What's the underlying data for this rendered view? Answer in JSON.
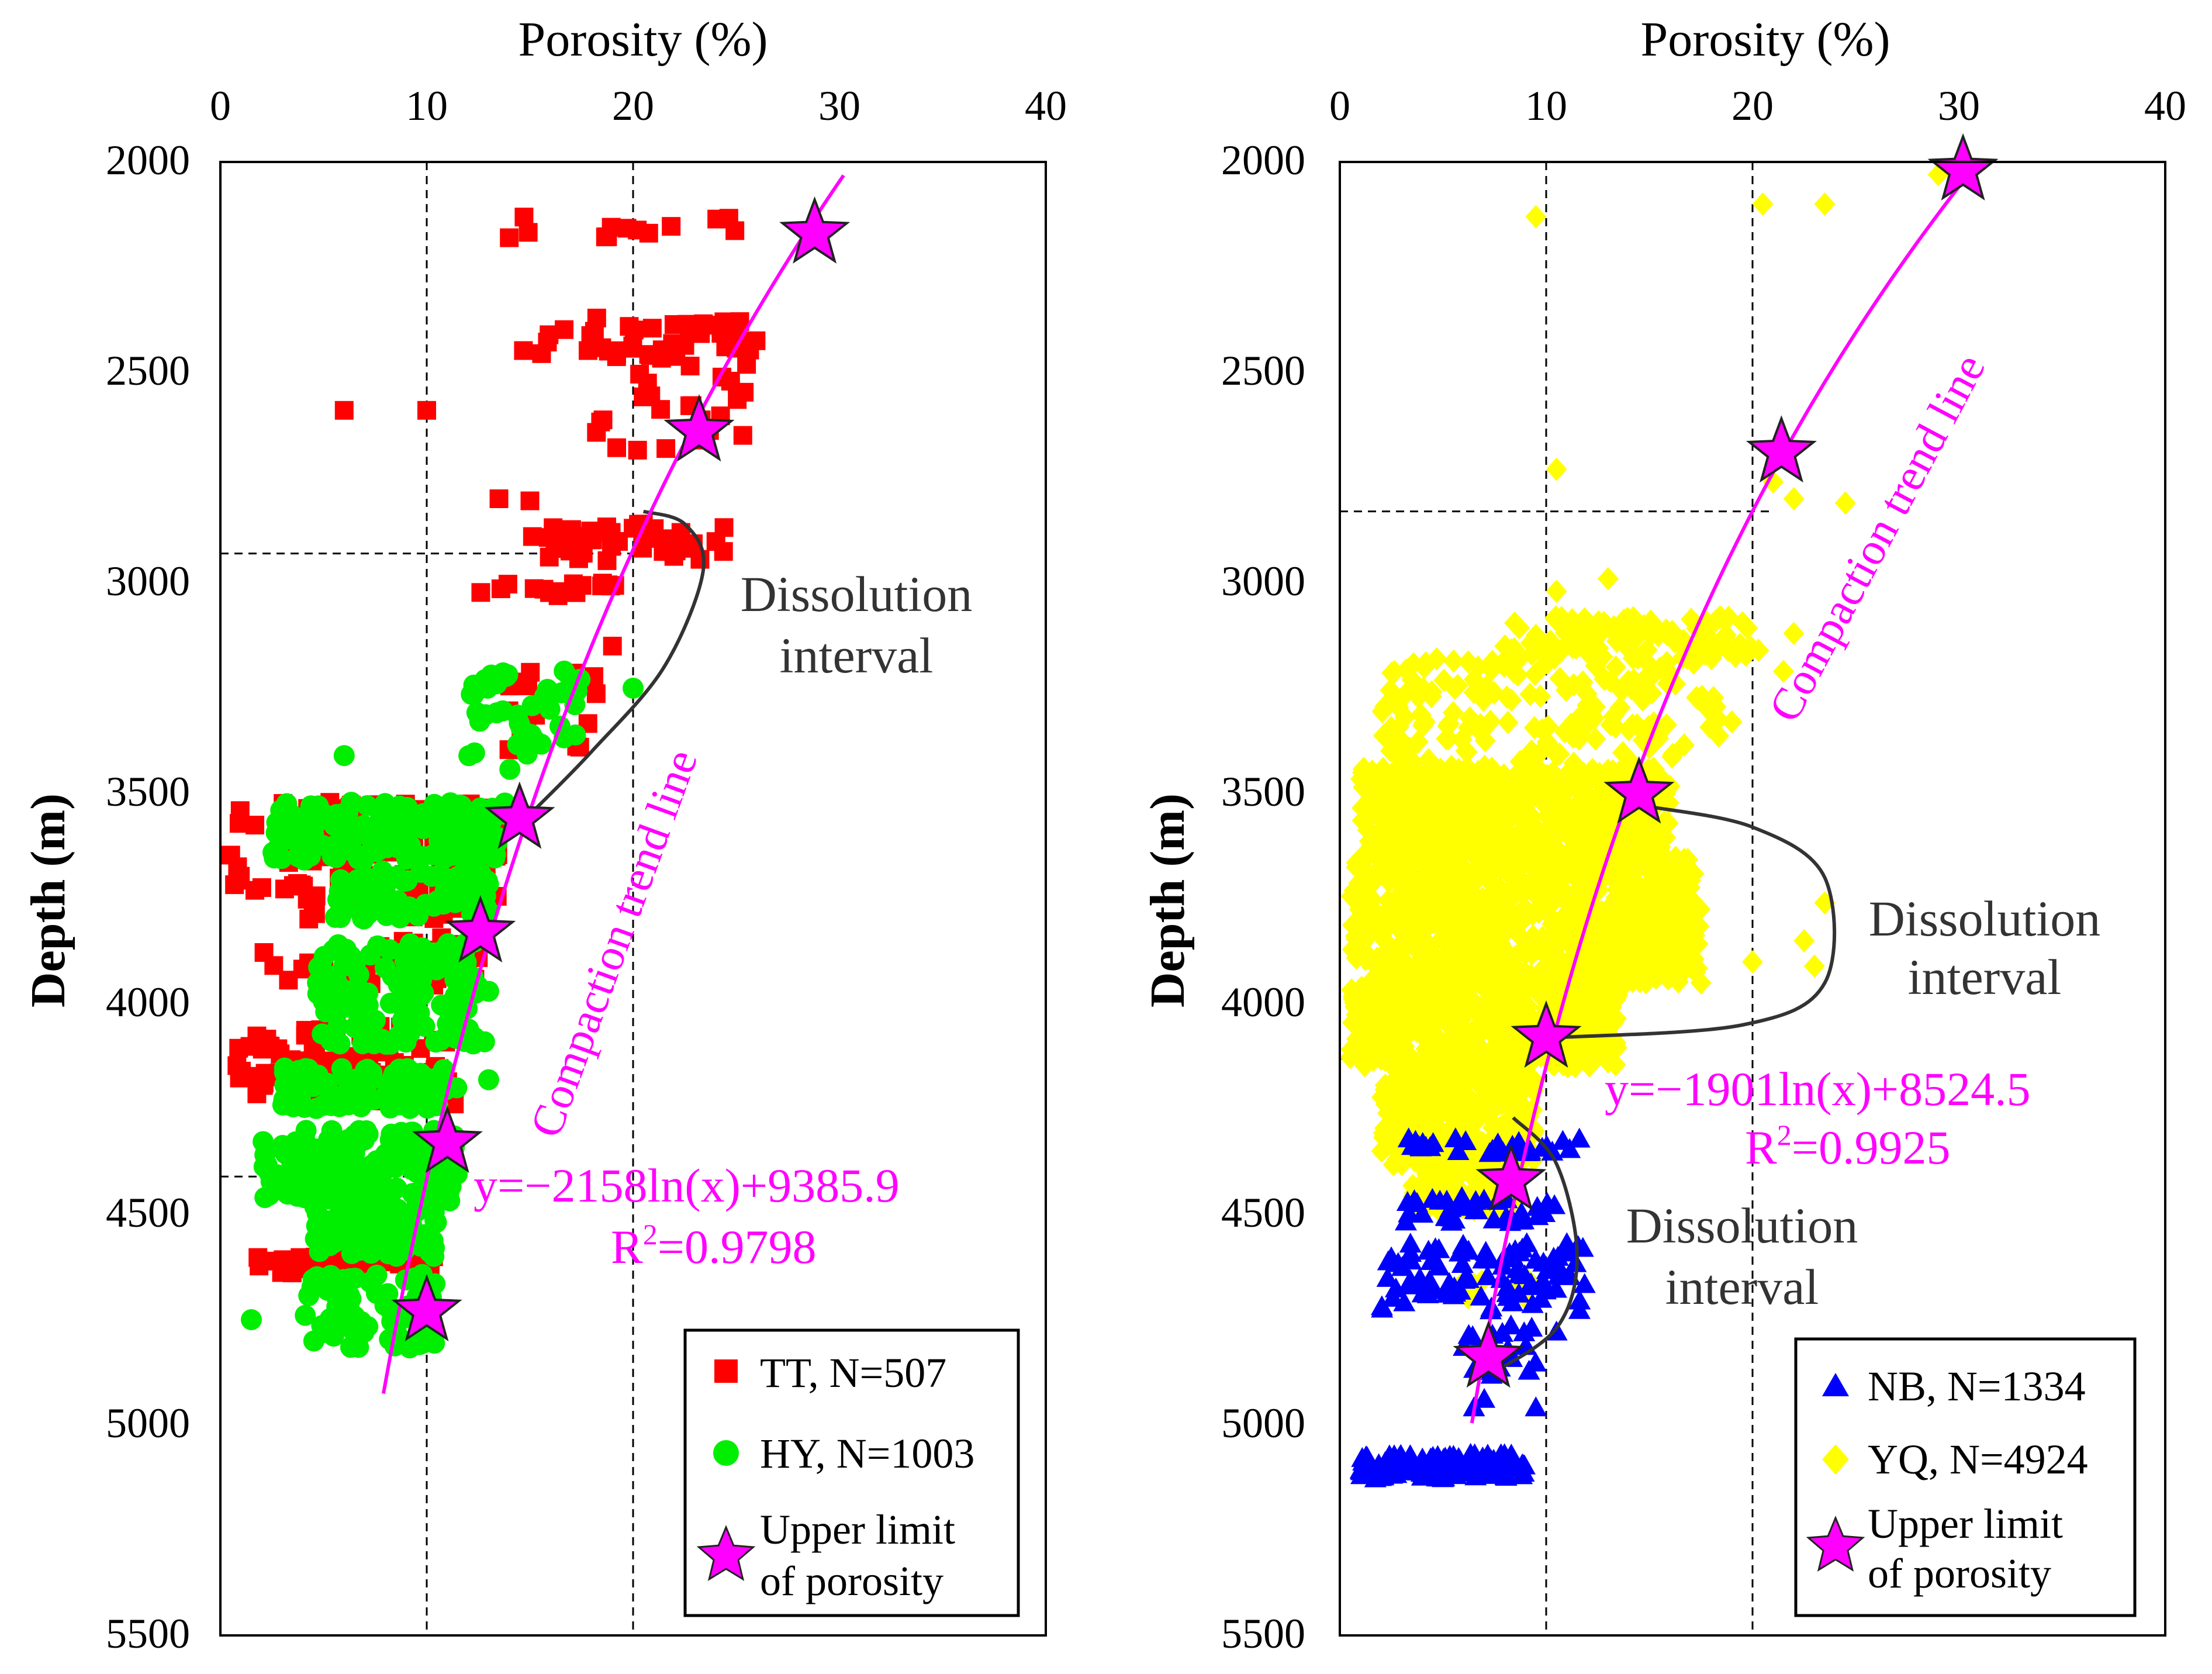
{
  "chart_data": [
    {
      "type": "scatter",
      "id": "left",
      "xlabel": "Porosity (%)",
      "ylabel": "Depth (m)",
      "xlim": [
        0,
        40
      ],
      "ylim": [
        2000,
        5500
      ],
      "xticks": [
        "0",
        "10",
        "20",
        "30",
        "40"
      ],
      "yticks": [
        "2000",
        "2500",
        "3000",
        "3500",
        "4000",
        "4500",
        "5000",
        "5500"
      ],
      "gridlines_x": [
        10,
        20
      ],
      "hlines": [
        {
          "depth": 2930,
          "x_to": 20
        },
        {
          "depth": 4410,
          "x_to": 12
        }
      ],
      "series": [
        {
          "name": "TT, N=507",
          "marker": "square",
          "color": "#ff0000",
          "clusters": [
            {
              "x": [
                14.5,
                25.0
              ],
              "y": [
                2130,
                2180
              ],
              "n": 12
            },
            {
              "x": [
                14.5,
                26.5
              ],
              "y": [
                2370,
                2470
              ],
              "n": 40
            },
            {
              "x": [
                17.5,
                25.5
              ],
              "y": [
                2480,
                2700
              ],
              "n": 24
            },
            {
              "x": [
                15.0,
                24.5
              ],
              "y": [
                2860,
                2950
              ],
              "n": 40
            },
            {
              "x": [
                11.0,
                20.0
              ],
              "y": [
                3000,
                3040
              ],
              "n": 16
            },
            {
              "x": [
                13.0,
                18.5
              ],
              "y": [
                3200,
                3420
              ],
              "n": 20
            },
            {
              "x": [
                0.5,
                13.5
              ],
              "y": [
                3520,
                3800
              ],
              "n": 120
            },
            {
              "x": [
                2.0,
                12.5
              ],
              "y": [
                3840,
                3960
              ],
              "n": 30
            },
            {
              "x": [
                0.8,
                11.5
              ],
              "y": [
                4050,
                4240
              ],
              "n": 110
            },
            {
              "x": [
                1.5,
                10.5
              ],
              "y": [
                4600,
                4640
              ],
              "n": 40
            }
          ],
          "points": [
            [
              14,
              2180
            ],
            [
              6,
              2590
            ],
            [
              10,
              2590
            ],
            [
              13.5,
              2800
            ],
            [
              15,
              2805
            ],
            [
              20,
              2870
            ],
            [
              19,
              3150
            ],
            [
              10.5,
              3940
            ],
            [
              12.5,
              3890
            ]
          ]
        },
        {
          "name": "HY, N=1003",
          "marker": "circle",
          "color": "#00ee00",
          "clusters": [
            {
              "x": [
                12.0,
                17.5
              ],
              "y": [
                3200,
                3450
              ],
              "n": 40
            },
            {
              "x": [
                2.5,
                14.5
              ],
              "y": [
                3520,
                3660
              ],
              "n": 160
            },
            {
              "x": [
                5.5,
                13.0
              ],
              "y": [
                3680,
                3800
              ],
              "n": 80
            },
            {
              "x": [
                4.5,
                12.5
              ],
              "y": [
                3850,
                4100
              ],
              "n": 140
            },
            {
              "x": [
                3.0,
                11.5
              ],
              "y": [
                4150,
                4250
              ],
              "n": 100
            },
            {
              "x": [
                2.0,
                11.5
              ],
              "y": [
                4300,
                4470
              ],
              "n": 160
            },
            {
              "x": [
                4.5,
                10.5
              ],
              "y": [
                4480,
                4600
              ],
              "n": 80
            },
            {
              "x": [
                4.0,
                10.5
              ],
              "y": [
                4640,
                4820
              ],
              "n": 70
            }
          ],
          "points": [
            [
              6,
              3410
            ],
            [
              1.5,
              4750
            ],
            [
              13,
              4180
            ],
            [
              12.8,
              4090
            ],
            [
              13,
              3970
            ],
            [
              20,
              3250
            ]
          ]
        }
      ],
      "stars": [
        {
          "x": 28.8,
          "y": 2170
        },
        {
          "x": 23.2,
          "y": 2640
        },
        {
          "x": 14.5,
          "y": 3560
        },
        {
          "x": 12.6,
          "y": 3830
        },
        {
          "x": 11.0,
          "y": 4330
        },
        {
          "x": 10.0,
          "y": 4730
        }
      ],
      "trend": {
        "a": 2158,
        "b": 9385.9,
        "x_range": [
          7.9,
          30.2
        ]
      },
      "dissolution_curve": [
        [
          20.5,
          2830
        ],
        [
          22.5,
          2860
        ],
        [
          23.4,
          2970
        ],
        [
          21.5,
          3200
        ],
        [
          18.0,
          3400
        ],
        [
          15.2,
          3540
        ]
      ],
      "annotations": {
        "trend_label": "Compaction trend line",
        "equation": "y=−2158ln(x)+9385.9",
        "r2_prefix": "R",
        "r2_sup": "2",
        "r2_value": "=0.9798",
        "dissolution": [
          "Dissolution",
          "interval"
        ]
      },
      "legend": {
        "position": "bottom-right",
        "entries": [
          "TT, N=507",
          "HY, N=1003"
        ],
        "star_label": [
          "Upper limit",
          "of porosity"
        ]
      }
    },
    {
      "type": "scatter",
      "id": "right",
      "xlabel": "Porosity (%)",
      "ylabel": "Depth (m)",
      "xlim": [
        0,
        40
      ],
      "ylim": [
        2000,
        5500
      ],
      "xticks": [
        "0",
        "10",
        "20",
        "30",
        "40"
      ],
      "yticks": [
        "2000",
        "2500",
        "3000",
        "3500",
        "4000",
        "4500",
        "5000",
        "5500"
      ],
      "gridlines_x": [
        10,
        20
      ],
      "hlines": [
        {
          "depth": 2830,
          "x_to": 21
        },
        {
          "depth": 4130,
          "x_to": 10
        }
      ],
      "series": [
        {
          "name": "YQ, N=4924",
          "marker": "diamond",
          "color": "#ffff00",
          "clusters": [
            {
              "x": [
                8.0,
                20.5
              ],
              "y": [
                3080,
                3180
              ],
              "n": 120
            },
            {
              "x": [
                2.0,
                18.5
              ],
              "y": [
                3180,
                3440
              ],
              "n": 160
            },
            {
              "x": [
                1.0,
                16.0
              ],
              "y": [
                3440,
                3650
              ],
              "n": 600
            },
            {
              "x": [
                0.5,
                17.5
              ],
              "y": [
                3650,
                3950
              ],
              "n": 800
            },
            {
              "x": [
                0.5,
                13.5
              ],
              "y": [
                3950,
                4150
              ],
              "n": 500
            },
            {
              "x": [
                2.0,
                9.5
              ],
              "y": [
                4150,
                4400
              ],
              "n": 300
            },
            {
              "x": [
                3.5,
                8.5
              ],
              "y": [
                4400,
                4500
              ],
              "n": 80
            },
            {
              "x": [
                5.5,
                9.5
              ],
              "y": [
                4650,
                4700
              ],
              "n": 10
            }
          ],
          "points": [
            [
              29,
              2030
            ],
            [
              9.5,
              2130
            ],
            [
              20.5,
              2100
            ],
            [
              23.5,
              2100
            ],
            [
              10.5,
              2730
            ],
            [
              21,
              2760
            ],
            [
              22,
              2800
            ],
            [
              24.5,
              2810
            ],
            [
              10.5,
              3020
            ],
            [
              13,
              2990
            ],
            [
              8,
              3150
            ],
            [
              3.5,
              3230
            ],
            [
              6.5,
              3260
            ],
            [
              19,
              3330
            ],
            [
              22,
              3120
            ],
            [
              21.5,
              3210
            ],
            [
              23.5,
              3760
            ],
            [
              22.5,
              3850
            ],
            [
              23,
              3910
            ],
            [
              20,
              3900
            ],
            [
              17.5,
              3950
            ],
            [
              8,
              4500
            ],
            [
              6,
              4660
            ],
            [
              9,
              4700
            ]
          ]
        },
        {
          "name": "NB, N=1334",
          "marker": "triangle",
          "color": "#0000ff",
          "clusters": [
            {
              "x": [
                3.0,
                12.5
              ],
              "y": [
                4320,
                4360
              ],
              "n": 30
            },
            {
              "x": [
                3.0,
                10.5
              ],
              "y": [
                4460,
                4520
              ],
              "n": 40
            },
            {
              "x": [
                2.0,
                12.0
              ],
              "y": [
                4570,
                4730
              ],
              "n": 90
            },
            {
              "x": [
                6.0,
                9.5
              ],
              "y": [
                4750,
                4900
              ],
              "n": 20
            },
            {
              "x": [
                1.0,
                9.0
              ],
              "y": [
                5070,
                5130
              ],
              "n": 160
            }
          ],
          "points": [
            [
              6.5,
              4960
            ],
            [
              9.5,
              4960
            ],
            [
              10.5,
              4780
            ],
            [
              11,
              4570
            ],
            [
              7,
              4940
            ]
          ]
        }
      ],
      "stars": [
        {
          "x": 30.2,
          "y": 2020
        },
        {
          "x": 21.4,
          "y": 2690
        },
        {
          "x": 14.5,
          "y": 3500
        },
        {
          "x": 10.0,
          "y": 4080
        },
        {
          "x": 8.3,
          "y": 4420
        },
        {
          "x": 7.2,
          "y": 4840
        }
      ],
      "trend": {
        "a": 1901,
        "b": 8524.5,
        "x_range": [
          6.4,
          30.7
        ]
      },
      "dissolution_curve": [
        [
          14.8,
          3530
        ],
        [
          20.0,
          3580
        ],
        [
          23.5,
          3700
        ],
        [
          23.5,
          3950
        ],
        [
          19.5,
          4050
        ],
        [
          10.5,
          4080
        ]
      ],
      "dissolution_curve_2": [
        [
          8.4,
          4270
        ],
        [
          10.5,
          4380
        ],
        [
          11.5,
          4600
        ],
        [
          10.5,
          4770
        ],
        [
          7.3,
          4880
        ]
      ],
      "annotations": {
        "trend_label": "Compaction trend line",
        "equation": "y=−1901ln(x)+8524.5",
        "r2_prefix": "R",
        "r2_sup": "2",
        "r2_value": "=0.9925",
        "dissolution": [
          "Dissolution",
          "interval"
        ],
        "dissolution_2": [
          "Dissolution",
          "interval"
        ]
      },
      "legend": {
        "position": "bottom-right",
        "entries": [
          "NB, N=1334",
          "YQ, N=4924"
        ],
        "star_label": [
          "Upper limit",
          "of porosity"
        ]
      }
    }
  ]
}
